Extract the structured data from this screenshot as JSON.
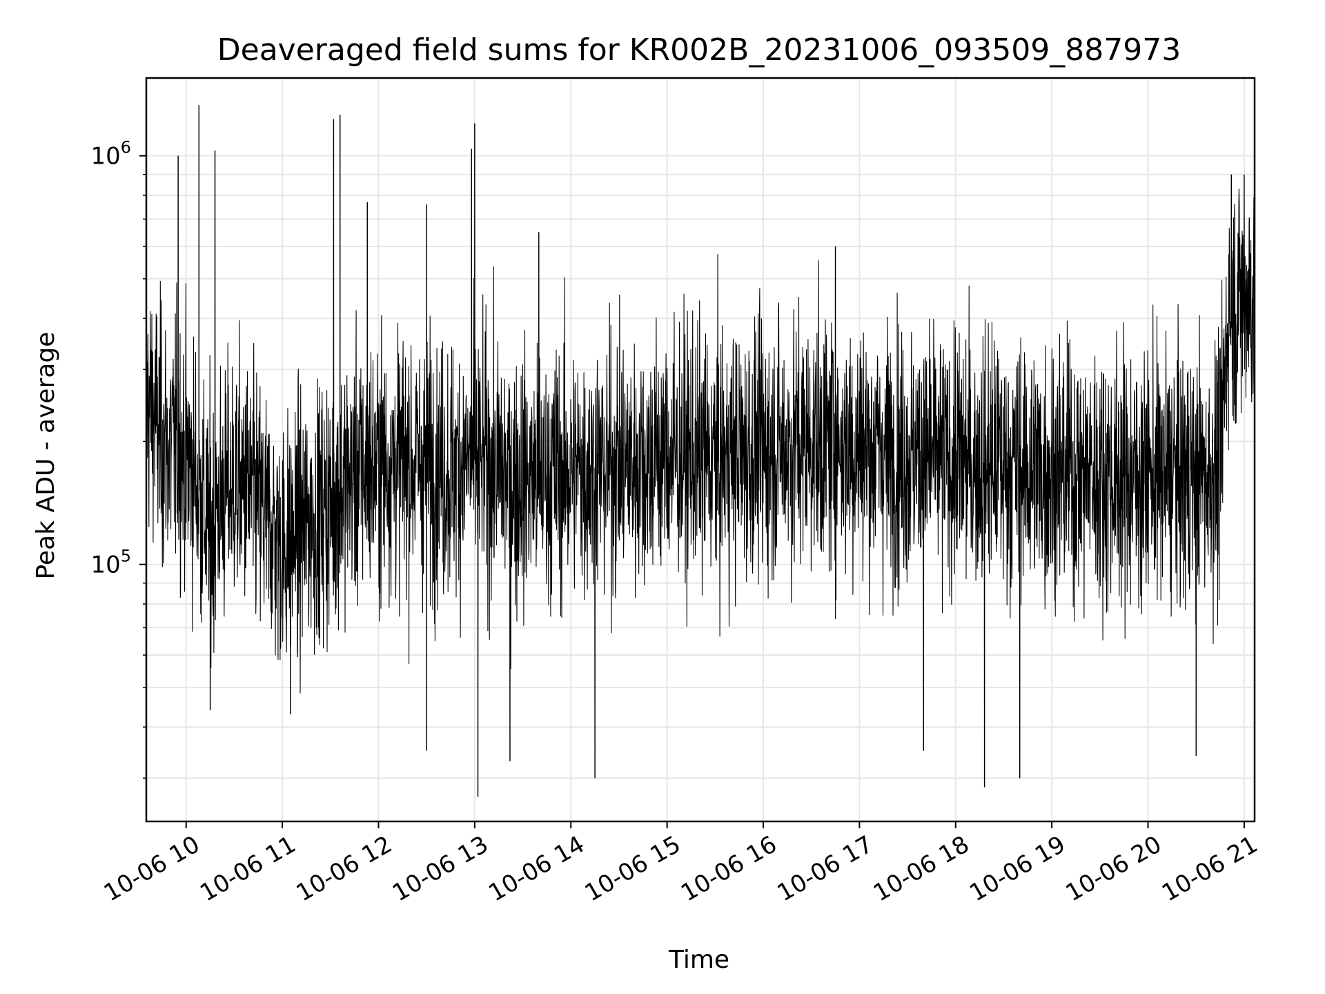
{
  "chart_data": {
    "type": "line",
    "title": "Deaveraged field sums for KR002B_20231006_093509_887973",
    "xlabel": "Time",
    "ylabel": "Peak ADU - average",
    "yscale": "log",
    "ylim": [
      23500,
      1550000
    ],
    "xlim": [
      "2023-10-06 09:35:09",
      "2023-10-06 21:06:30"
    ],
    "grid": true,
    "line_color": "#000000",
    "x_ticks": [
      "2023-10-06 10:00",
      "2023-10-06 11:00",
      "2023-10-06 12:00",
      "2023-10-06 13:00",
      "2023-10-06 14:00",
      "2023-10-06 15:00",
      "2023-10-06 16:00",
      "2023-10-06 17:00",
      "2023-10-06 18:00",
      "2023-10-06 19:00",
      "2023-10-06 20:00",
      "2023-10-06 21:00"
    ],
    "x_tick_labels": [
      "10-06 10",
      "10-06 11",
      "10-06 12",
      "10-06 13",
      "10-06 14",
      "10-06 15",
      "10-06 16",
      "10-06 17",
      "10-06 18",
      "10-06 19",
      "10-06 20",
      "10-06 21"
    ],
    "y_ticks": [
      100000,
      1000000
    ],
    "y_tick_labels": [
      {
        "base": "10",
        "exp": "5"
      },
      {
        "base": "10",
        "exp": "6"
      }
    ],
    "series": [
      {
        "x": [
          "2023-10-06 09:35",
          "2023-10-06 09:40",
          "2023-10-06 09:45",
          "2023-10-06 09:50",
          "2023-10-06 09:55",
          "2023-10-06 10:00",
          "2023-10-06 10:05",
          "2023-10-06 10:10",
          "2023-10-06 10:15",
          "2023-10-06 10:20",
          "2023-10-06 10:30",
          "2023-10-06 10:40",
          "2023-10-06 10:50",
          "2023-10-06 11:00",
          "2023-10-06 11:10",
          "2023-10-06 11:20",
          "2023-10-06 11:30",
          "2023-10-06 11:40",
          "2023-10-06 11:50",
          "2023-10-06 12:00",
          "2023-10-06 12:15",
          "2023-10-06 12:30",
          "2023-10-06 12:45",
          "2023-10-06 13:00",
          "2023-10-06 13:15",
          "2023-10-06 13:30",
          "2023-10-06 13:45",
          "2023-10-06 14:00",
          "2023-10-06 14:30",
          "2023-10-06 15:00",
          "2023-10-06 15:30",
          "2023-10-06 16:00",
          "2023-10-06 16:30",
          "2023-10-06 17:00",
          "2023-10-06 17:30",
          "2023-10-06 18:00",
          "2023-10-06 18:30",
          "2023-10-06 19:00",
          "2023-10-06 19:30",
          "2023-10-06 20:00",
          "2023-10-06 20:30",
          "2023-10-06 20:45",
          "2023-10-06 20:50",
          "2023-10-06 21:00",
          "2023-10-06 21:06"
        ],
        "center": [
          260000,
          230000,
          200000,
          190000,
          200000,
          180000,
          170000,
          140000,
          120000,
          140000,
          160000,
          150000,
          130000,
          110000,
          120000,
          130000,
          140000,
          160000,
          170000,
          175000,
          180000,
          175000,
          170000,
          180000,
          170000,
          160000,
          165000,
          170000,
          175000,
          185000,
          180000,
          190000,
          200000,
          195000,
          185000,
          180000,
          175000,
          170000,
          165000,
          165000,
          165000,
          170000,
          430000,
          450000,
          460000
        ],
        "spikes": [
          {
            "x": "2023-10-06 09:55",
            "y": 1000000
          },
          {
            "x": "2023-10-06 10:08",
            "y": 1330000
          },
          {
            "x": "2023-10-06 10:18",
            "y": 1030000
          },
          {
            "x": "2023-10-06 11:32",
            "y": 1230000
          },
          {
            "x": "2023-10-06 11:36",
            "y": 1260000
          },
          {
            "x": "2023-10-06 11:53",
            "y": 770000
          },
          {
            "x": "2023-10-06 12:30",
            "y": 760000
          },
          {
            "x": "2023-10-06 12:58",
            "y": 1040000
          },
          {
            "x": "2023-10-06 13:00",
            "y": 1200000
          },
          {
            "x": "2023-10-06 13:40",
            "y": 650000
          },
          {
            "x": "2023-10-06 16:45",
            "y": 600000
          },
          {
            "x": "2023-10-06 20:52",
            "y": 900000
          },
          {
            "x": "2023-10-06 21:00",
            "y": 900000
          }
        ],
        "dips": [
          {
            "x": "2023-10-06 10:15",
            "y": 44000
          },
          {
            "x": "2023-10-06 11:05",
            "y": 43000
          },
          {
            "x": "2023-10-06 12:30",
            "y": 35000
          },
          {
            "x": "2023-10-06 13:02",
            "y": 27000
          },
          {
            "x": "2023-10-06 13:22",
            "y": 33000
          },
          {
            "x": "2023-10-06 14:15",
            "y": 30000
          },
          {
            "x": "2023-10-06 17:40",
            "y": 35000
          },
          {
            "x": "2023-10-06 18:18",
            "y": 28500
          },
          {
            "x": "2023-10-06 18:40",
            "y": 30000
          },
          {
            "x": "2023-10-06 20:30",
            "y": 34000
          }
        ]
      }
    ]
  }
}
